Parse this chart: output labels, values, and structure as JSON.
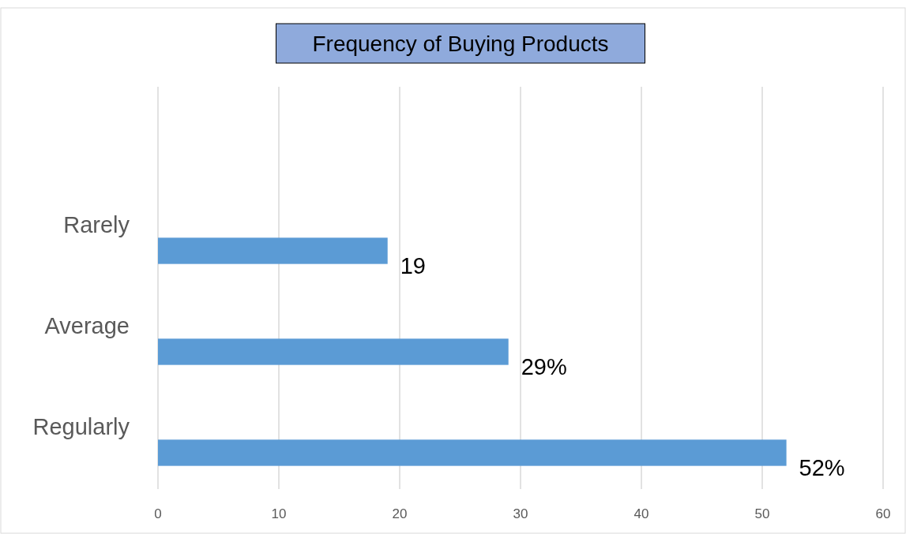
{
  "chart_data": {
    "type": "bar",
    "orientation": "horizontal",
    "title": "Frequency of Buying Products",
    "categories": [
      "Rarely",
      "Average",
      "Regularly"
    ],
    "values": [
      19,
      29,
      52
    ],
    "value_labels": [
      "19",
      "29%",
      "52%"
    ],
    "color": "#5b9bd5",
    "xlim": [
      0,
      60
    ],
    "xticks": [
      0,
      10,
      20,
      30,
      40,
      50,
      60
    ],
    "grid": "x"
  }
}
